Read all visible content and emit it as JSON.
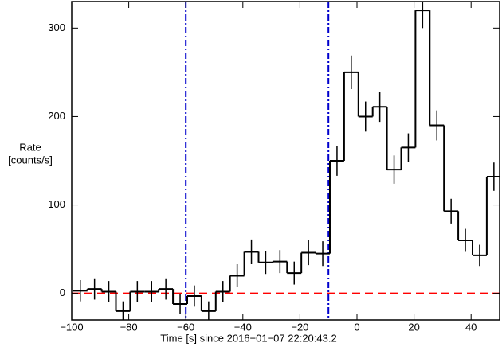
{
  "chart_data": {
    "type": "histogram",
    "xlabel": "Time [s] since 2016−01−07 22:20:43.2",
    "ylabel": [
      "Rate",
      "[counts/s]"
    ],
    "bins": [
      -99.5,
      -94.5,
      -89.5,
      -84.5,
      -79.5,
      -74.5,
      -69.5,
      -64.5,
      -59.5,
      -54.5,
      -49.5,
      -44.5,
      -39.5,
      -34.5,
      -29.5,
      -24.5,
      -19.5,
      -14.5,
      -9.5,
      -4.5,
      0.5,
      5.5,
      10.5,
      15.5,
      20.5,
      25.5,
      30.5,
      35.5,
      40.5,
      45.5,
      50.5
    ],
    "values": [
      3,
      5,
      2,
      -20,
      2,
      2,
      5,
      -12,
      -3,
      -20,
      2,
      20,
      47,
      35,
      36,
      23,
      46,
      45,
      150,
      250,
      200,
      211,
      140,
      165,
      320,
      190,
      93,
      60,
      43,
      132
    ],
    "errors": [
      12,
      12,
      12,
      11,
      12,
      12,
      12,
      11,
      12,
      11,
      12,
      13,
      14,
      13,
      13,
      13,
      14,
      14,
      17,
      19,
      17,
      17,
      16,
      16,
      20,
      17,
      14,
      13,
      12,
      16
    ],
    "color": "#000000",
    "xlim": [
      -100,
      50
    ],
    "ylim": [
      -30,
      330
    ],
    "xticks": [
      {
        "value": -100,
        "label": "−100"
      },
      {
        "value": -80,
        "label": "−80"
      },
      {
        "value": -60,
        "label": "−60"
      },
      {
        "value": -40,
        "label": "−40"
      },
      {
        "value": -20,
        "label": "−20"
      },
      0,
      20,
      40
    ],
    "yticks": [
      0,
      100,
      200,
      300
    ],
    "vlines": [
      {
        "value": -60,
        "color": "#0000cc"
      },
      {
        "value": -10,
        "color": "#0000cc"
      }
    ],
    "hline": {
      "value": 0,
      "color": "#ff0000"
    }
  }
}
